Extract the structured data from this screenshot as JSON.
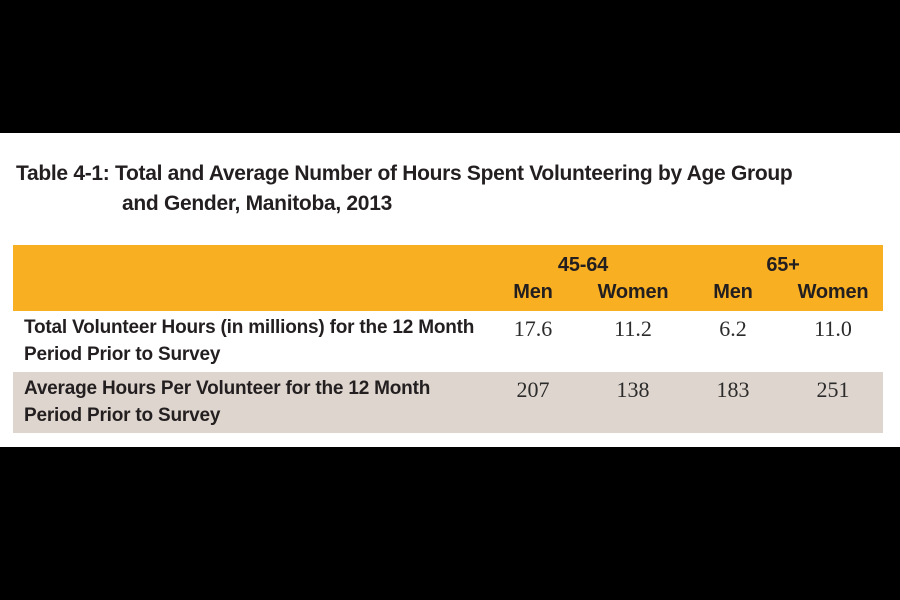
{
  "title": {
    "line1": "Table 4-1: Total and Average Number of Hours Spent Volunteering by Age Group",
    "line2": "and Gender, Manitoba, 2013"
  },
  "table": {
    "column_groups": [
      {
        "label": "45-64",
        "span": 2
      },
      {
        "label": "65+",
        "span": 2
      }
    ],
    "column_headers": [
      "Men",
      "Women",
      "Men",
      "Women"
    ],
    "rows": [
      {
        "label": "Total Volunteer Hours (in millions) for the 12 Month Period Prior to Survey",
        "values": [
          "17.6",
          "11.2",
          "6.2",
          "11.0"
        ]
      },
      {
        "label": "Average Hours Per Volunteer for the 12 Month Period Prior to Survey",
        "values": [
          "207",
          "138",
          "183",
          "251"
        ]
      }
    ]
  },
  "chart_data": {
    "type": "table",
    "title": "Table 4-1: Total and Average Number of Hours Spent Volunteering by Age Group and Gender, Manitoba, 2013",
    "column_groups": [
      "45-64",
      "65+"
    ],
    "columns": [
      "45-64 Men",
      "45-64 Women",
      "65+ Men",
      "65+ Women"
    ],
    "rows": [
      {
        "label": "Total Volunteer Hours (in millions) for the 12 Month Period Prior to Survey",
        "values": [
          17.6,
          11.2,
          6.2,
          11.0
        ]
      },
      {
        "label": "Average Hours Per Volunteer for the 12 Month Period Prior to Survey",
        "values": [
          207,
          138,
          183,
          251
        ]
      }
    ]
  },
  "colors": {
    "page_bg": "#000000",
    "panel_bg": "#ffffff",
    "header_bg": "#f8b022",
    "alt_row_bg": "#ded5ce",
    "text": "#231f20"
  }
}
